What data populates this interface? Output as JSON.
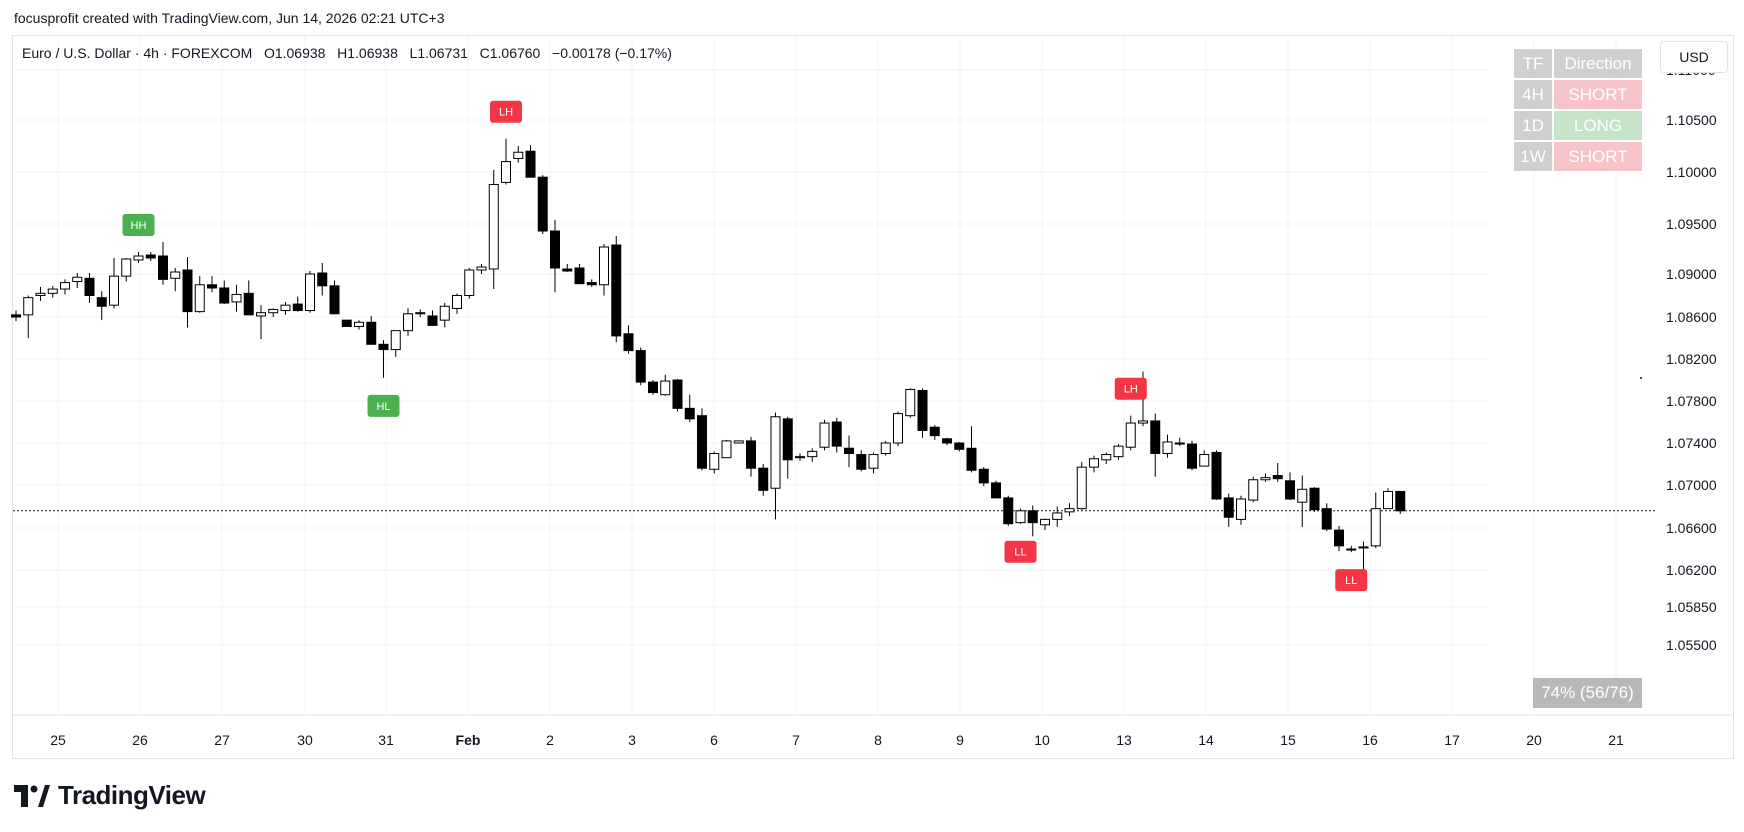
{
  "header": {
    "credit": "focusprofit created with TradingView.com, Jun 14, 2026 02:21 UTC+3"
  },
  "legend": {
    "symbol": "Euro / U.S. Dollar · 4h · FOREXCOM",
    "o_label": "O",
    "o": "1.06938",
    "h_label": "H",
    "h": "1.06938",
    "l_label": "L",
    "l": "1.06731",
    "c_label": "C",
    "c": "1.06760",
    "change": "−0.00178 (−0.17%)"
  },
  "currency_button": "USD",
  "direction_table": {
    "headers": [
      "TF",
      "Direction"
    ],
    "rows": [
      {
        "tf": "4H",
        "direction": "SHORT"
      },
      {
        "tf": "1D",
        "direction": "LONG"
      },
      {
        "tf": "1W",
        "direction": "SHORT"
      }
    ]
  },
  "stats_box": "74% (56/76)",
  "logo_text": "TradingView",
  "colors": {
    "up_fill": "#ffffff",
    "down_fill": "#000000",
    "candle_border": "#000000",
    "hh_hl_tag": "#4caf50",
    "lh_ll_tag": "#f23645",
    "grid": "#f0f3fa",
    "price_line": "#131722"
  },
  "chart_data": {
    "type": "candlestick",
    "symbol": "EURUSD",
    "timeframe": "4h",
    "y_axis": {
      "ticks": [
        "1.11000",
        "1.10500",
        "1.10000",
        "1.09500",
        "1.09000",
        "1.08600",
        "1.08200",
        "1.07800",
        "1.07400",
        "1.07000",
        "1.06600",
        "1.06200",
        "1.05850",
        "1.05500"
      ]
    },
    "x_axis": {
      "ticks": [
        "25",
        "26",
        "27",
        "30",
        "31",
        "Feb",
        "2",
        "3",
        "6",
        "7",
        "8",
        "9",
        "10",
        "13",
        "14",
        "15",
        "16",
        "17",
        "20",
        "21"
      ]
    },
    "last_price": 1.0676,
    "candles": [
      [
        1.0862,
        1.0866,
        1.0856,
        1.086
      ],
      [
        1.0862,
        1.088,
        1.084,
        1.0878
      ],
      [
        1.088,
        1.0888,
        1.0875,
        1.0882
      ],
      [
        1.0882,
        1.0889,
        1.0878,
        1.0886
      ],
      [
        1.0886,
        1.0895,
        1.0881,
        1.0892
      ],
      [
        1.0893,
        1.0901,
        1.0887,
        1.0897
      ],
      [
        1.0896,
        1.0901,
        1.0873,
        1.088
      ],
      [
        1.0878,
        1.0884,
        1.0857,
        1.087
      ],
      [
        1.0871,
        1.0916,
        1.0868,
        1.0898
      ],
      [
        1.0898,
        1.0916,
        1.0893,
        1.0915
      ],
      [
        1.0914,
        1.0922,
        1.0911,
        1.0918
      ],
      [
        1.0919,
        1.0922,
        1.0913,
        1.0916
      ],
      [
        1.0918,
        1.0932,
        1.089,
        1.0895
      ],
      [
        1.0896,
        1.0906,
        1.0884,
        1.0902
      ],
      [
        1.0904,
        1.0917,
        1.085,
        1.0865
      ],
      [
        1.0865,
        1.0898,
        1.0864,
        1.089
      ],
      [
        1.089,
        1.0898,
        1.0883,
        1.0887
      ],
      [
        1.0887,
        1.0894,
        1.0872,
        1.0873
      ],
      [
        1.0874,
        1.089,
        1.0865,
        1.0881
      ],
      [
        1.0882,
        1.0894,
        1.0863,
        1.0862
      ],
      [
        1.0861,
        1.0871,
        1.0839,
        1.0864
      ],
      [
        1.0864,
        1.0868,
        1.086,
        1.0867
      ],
      [
        1.0866,
        1.0874,
        1.0862,
        1.0871
      ],
      [
        1.0872,
        1.0879,
        1.0865,
        1.0866
      ],
      [
        1.0866,
        1.0903,
        1.0864,
        1.09
      ],
      [
        1.0901,
        1.0911,
        1.088,
        1.0889
      ],
      [
        1.0889,
        1.0894,
        1.0863,
        1.0863
      ],
      [
        1.0857,
        1.0857,
        1.0851,
        1.0851
      ],
      [
        1.0851,
        1.0857,
        1.0848,
        1.0855
      ],
      [
        1.0855,
        1.0861,
        1.0834,
        1.0834
      ],
      [
        1.0834,
        1.0838,
        1.0802,
        1.0829
      ],
      [
        1.0829,
        1.0846,
        1.0822,
        1.0847
      ],
      [
        1.0847,
        1.0868,
        1.0842,
        1.0863
      ],
      [
        1.0863,
        1.0867,
        1.086,
        1.0864
      ],
      [
        1.0861,
        1.0866,
        1.0852,
        1.0852
      ],
      [
        1.0857,
        1.0873,
        1.085,
        1.087
      ],
      [
        1.0868,
        1.0882,
        1.0863,
        1.088
      ],
      [
        1.088,
        1.0906,
        1.0877,
        1.0904
      ],
      [
        1.0904,
        1.091,
        1.09,
        1.0907
      ],
      [
        1.0905,
        1.1002,
        1.0886,
        1.0988
      ],
      [
        1.099,
        1.1032,
        1.0988,
        1.101
      ],
      [
        1.1013,
        1.1025,
        1.1009,
        1.1019
      ],
      [
        1.102,
        1.1026,
        1.0998,
        1.0995
      ],
      [
        1.0995,
        1.0997,
        1.094,
        1.0943
      ],
      [
        1.0943,
        1.0954,
        1.0883,
        1.0906
      ],
      [
        1.0905,
        1.091,
        1.0902,
        1.0903
      ],
      [
        1.0906,
        1.091,
        1.0891,
        1.0891
      ],
      [
        1.0892,
        1.0895,
        1.0888,
        1.089
      ],
      [
        1.089,
        1.093,
        1.088,
        1.0927
      ],
      [
        1.0929,
        1.0938,
        1.0836,
        1.0842
      ],
      [
        1.0844,
        1.0852,
        1.0825,
        1.0828
      ],
      [
        1.0828,
        1.0831,
        1.0795,
        1.0798
      ],
      [
        1.0798,
        1.08,
        1.0786,
        1.0788
      ],
      [
        1.0786,
        1.0805,
        1.0785,
        1.0799
      ],
      [
        1.08,
        1.0801,
        1.077,
        1.0773
      ],
      [
        1.0773,
        1.0786,
        1.076,
        1.0763
      ],
      [
        1.0766,
        1.0773,
        1.0714,
        1.0716
      ],
      [
        1.0715,
        1.0732,
        1.0711,
        1.073
      ],
      [
        1.0726,
        1.0743,
        1.0726,
        1.0742
      ],
      [
        1.074,
        1.0742,
        1.074,
        1.0742
      ],
      [
        1.0742,
        1.0746,
        1.0708,
        1.0716
      ],
      [
        1.0716,
        1.072,
        1.069,
        1.0695
      ],
      [
        1.0697,
        1.0769,
        1.0668,
        1.0765
      ],
      [
        1.0763,
        1.0765,
        1.0706,
        1.0724
      ],
      [
        1.0726,
        1.073,
        1.0723,
        1.0727
      ],
      [
        1.0727,
        1.0735,
        1.0722,
        1.0732
      ],
      [
        1.0736,
        1.0762,
        1.0733,
        1.0759
      ],
      [
        1.076,
        1.0764,
        1.0731,
        1.0737
      ],
      [
        1.0735,
        1.0747,
        1.0717,
        1.073
      ],
      [
        1.0729,
        1.0733,
        1.0713,
        1.0715
      ],
      [
        1.0716,
        1.0731,
        1.0711,
        1.0729
      ],
      [
        1.073,
        1.0742,
        1.0728,
        1.074
      ],
      [
        1.074,
        1.077,
        1.0737,
        1.0768
      ],
      [
        1.0766,
        1.0792,
        1.0764,
        1.0791
      ],
      [
        1.079,
        1.0792,
        1.0745,
        1.0752
      ],
      [
        1.0755,
        1.0757,
        1.0743,
        1.0747
      ],
      [
        1.0744,
        1.0745,
        1.0738,
        1.074
      ],
      [
        1.074,
        1.0741,
        1.0732,
        1.0734
      ],
      [
        1.0735,
        1.0756,
        1.0712,
        1.0714
      ],
      [
        1.0715,
        1.0717,
        1.0699,
        1.0702
      ],
      [
        1.0702,
        1.0704,
        1.0688,
        1.0688
      ],
      [
        1.0688,
        1.069,
        1.0662,
        1.0664
      ],
      [
        1.0665,
        1.0678,
        1.0664,
        1.0676
      ],
      [
        1.0676,
        1.0681,
        1.0652,
        1.0665
      ],
      [
        1.0663,
        1.0669,
        1.0658,
        1.0668
      ],
      [
        1.0668,
        1.068,
        1.0661,
        1.0674
      ],
      [
        1.0675,
        1.0683,
        1.0671,
        1.0678
      ],
      [
        1.0678,
        1.0722,
        1.0677,
        1.0717
      ],
      [
        1.0717,
        1.0728,
        1.0712,
        1.0725
      ],
      [
        1.0724,
        1.0731,
        1.072,
        1.0729
      ],
      [
        1.0727,
        1.0739,
        1.0724,
        1.0737
      ],
      [
        1.0736,
        1.0766,
        1.0733,
        1.0759
      ],
      [
        1.0759,
        1.0808,
        1.0756,
        1.0761
      ],
      [
        1.0761,
        1.0768,
        1.0708,
        1.073
      ],
      [
        1.073,
        1.0748,
        1.0726,
        1.0741
      ],
      [
        1.074,
        1.0745,
        1.0737,
        1.0739
      ],
      [
        1.0739,
        1.0742,
        1.0714,
        1.0716
      ],
      [
        1.0718,
        1.0733,
        1.0718,
        1.0729
      ],
      [
        1.0731,
        1.0733,
        1.0686,
        1.0687
      ],
      [
        1.0688,
        1.0692,
        1.0661,
        1.067
      ],
      [
        1.0668,
        1.069,
        1.0663,
        1.0687
      ],
      [
        1.0686,
        1.0708,
        1.0684,
        1.0705
      ],
      [
        1.0705,
        1.0711,
        1.0703,
        1.0707
      ],
      [
        1.0709,
        1.0721,
        1.0703,
        1.0706
      ],
      [
        1.0704,
        1.0712,
        1.0686,
        1.0687
      ],
      [
        1.0684,
        1.0709,
        1.0661,
        1.0696
      ],
      [
        1.0697,
        1.0698,
        1.0675,
        1.0677
      ],
      [
        1.0678,
        1.0683,
        1.0657,
        1.0659
      ],
      [
        1.0658,
        1.0662,
        1.0638,
        1.0643
      ],
      [
        1.0639,
        1.0643,
        1.0637,
        1.064
      ],
      [
        1.0641,
        1.0647,
        1.0614,
        1.0642
      ],
      [
        1.0643,
        1.0693,
        1.0641,
        1.0678
      ],
      [
        1.0678,
        1.0697,
        1.0678,
        1.0694
      ],
      [
        1.0694,
        1.0694,
        1.0673,
        1.0676
      ]
    ],
    "annotations": [
      {
        "label": "HH",
        "type": "swing_high",
        "candle": 10
      },
      {
        "label": "HL",
        "type": "swing_low",
        "candle": 30
      },
      {
        "label": "LH",
        "type": "swing_high",
        "candle": 40
      },
      {
        "label": "LL",
        "type": "swing_low",
        "candle": 82
      },
      {
        "label": "LH",
        "type": "swing_high",
        "candle": 91
      },
      {
        "label": "LL",
        "type": "swing_low",
        "candle": 109
      }
    ]
  }
}
